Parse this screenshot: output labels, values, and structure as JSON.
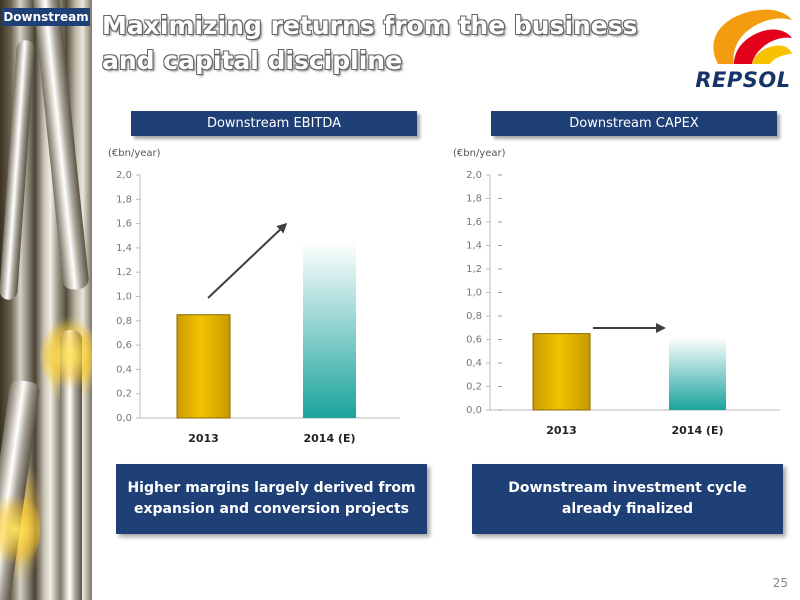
{
  "section_tag": "Downstream",
  "title": "Maximizing returns from the business and capital discipline",
  "logo": {
    "word": "REPSOL"
  },
  "page_number": "25",
  "colors": {
    "navy": "#1f3f77",
    "bar_2013": "#f2c300",
    "bar_2014": "#1aa39c"
  },
  "charts": {
    "ebitda": {
      "header": "Downstream EBITDA",
      "unit": "(€bn/year)",
      "caption": "Higher margins largely derived from expansion and conversion projects"
    },
    "capex": {
      "header": "Downstream CAPEX",
      "unit": "(€bn/year)",
      "caption": "Downstream investment cycle already finalized"
    }
  },
  "chart_data": [
    {
      "type": "bar",
      "title": "Downstream EBITDA",
      "ylabel": "(€bn/year)",
      "categories": [
        "2013",
        "2014 (E)"
      ],
      "values": [
        0.85,
        1.45
      ],
      "ylim": [
        0,
        2.0
      ],
      "yticks": [
        "0,0",
        "0,2",
        "0,4",
        "0,6",
        "0,8",
        "1,0",
        "1,2",
        "1,4",
        "1,6",
        "1,8",
        "2,0"
      ],
      "grid": false,
      "legend": "none",
      "annotation": "upward arrow"
    },
    {
      "type": "bar",
      "title": "Downstream CAPEX",
      "ylabel": "(€bn/year)",
      "categories": [
        "2013",
        "2014 (E)"
      ],
      "values": [
        0.65,
        0.62
      ],
      "ylim": [
        0,
        2.0
      ],
      "yticks": [
        "0,0",
        "0,2",
        "0,4",
        "0,6",
        "0,8",
        "1,0",
        "1,2",
        "1,4",
        "1,6",
        "1,8",
        "2,0"
      ],
      "grid": false,
      "legend": "none",
      "annotation": "horizontal arrow"
    }
  ]
}
